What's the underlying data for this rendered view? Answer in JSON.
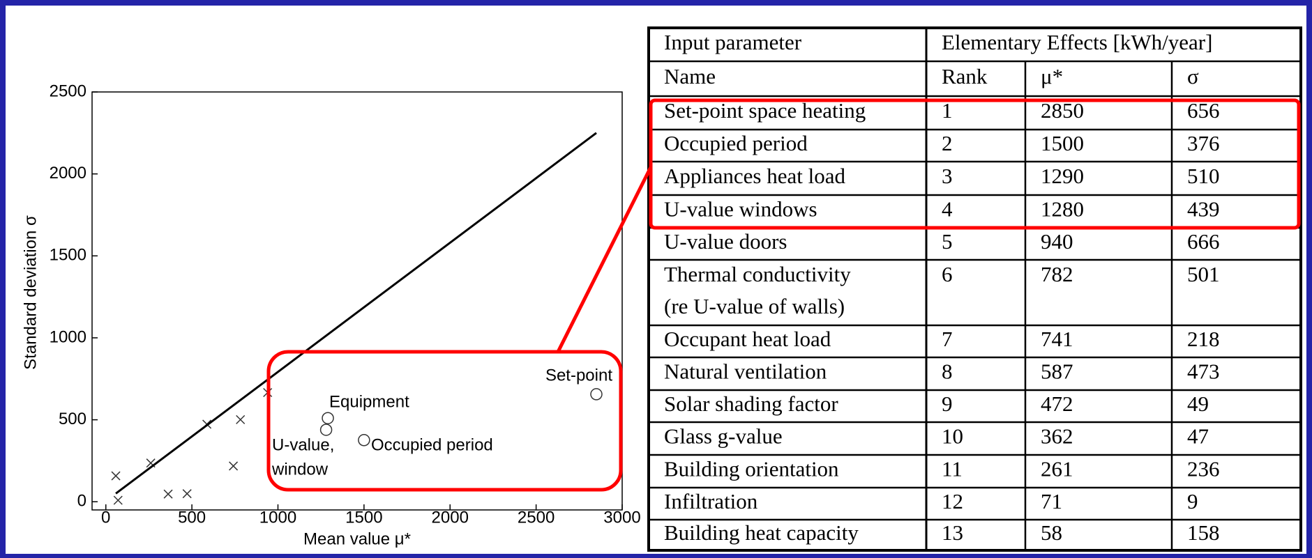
{
  "chart_data": {
    "type": "scatter",
    "xlabel": "Mean value μ*",
    "ylabel": "Standard deviation σ",
    "xlim": [
      -80,
      3000
    ],
    "xticks": [
      0,
      500,
      1000,
      1500,
      2000,
      2500,
      3000
    ],
    "ylim": [
      -50,
      2500
    ],
    "yticks": [
      0,
      500,
      1000,
      1500,
      2000,
      2500
    ],
    "series": [
      {
        "marker": "cross",
        "color": "#333333",
        "x": [
          940,
          782,
          741,
          587,
          472,
          362,
          261,
          71,
          58
        ],
        "values": [
          666,
          501,
          218,
          473,
          49,
          47,
          236,
          9,
          158
        ]
      },
      {
        "marker": "circle",
        "color": "#333333",
        "x": [
          2850,
          1500,
          1290,
          1280
        ],
        "values": [
          656,
          376,
          510,
          439
        ]
      },
      {
        "marker": "line",
        "color": "#000000",
        "x": [
          58,
          2850
        ],
        "values": [
          50,
          2250
        ]
      }
    ],
    "annotations": [
      "Set-point",
      "Equipment",
      [
        "U-value,",
        "window"
      ],
      "Occupied period"
    ]
  },
  "table": {
    "header": [
      [
        "Input parameter",
        "Elementary Effects [kWh/year]"
      ],
      [
        "Name",
        "Rank",
        "μ*",
        "σ"
      ]
    ],
    "rows": [
      [
        "Set-point space heating",
        1,
        2850,
        656
      ],
      [
        "Occupied period",
        2,
        1500,
        376
      ],
      [
        "Appliances heat load",
        3,
        1290,
        510
      ],
      [
        "U-value windows",
        4,
        1280,
        439
      ],
      [
        "U-value doors",
        5,
        940,
        666
      ],
      [
        [
          "Thermal conductivity",
          "(re U-value of walls)"
        ],
        6,
        782,
        501
      ],
      [
        "Occupant heat load",
        7,
        741,
        218
      ],
      [
        "Natural ventilation",
        8,
        587,
        473
      ],
      [
        "Solar shading factor",
        9,
        472,
        49
      ],
      [
        "Glass g-value",
        10,
        362,
        47
      ],
      [
        "Building orientation",
        11,
        261,
        236
      ],
      [
        "Infiltration",
        12,
        71,
        9
      ],
      [
        "Building heat capacity",
        13,
        58,
        158
      ]
    ]
  }
}
